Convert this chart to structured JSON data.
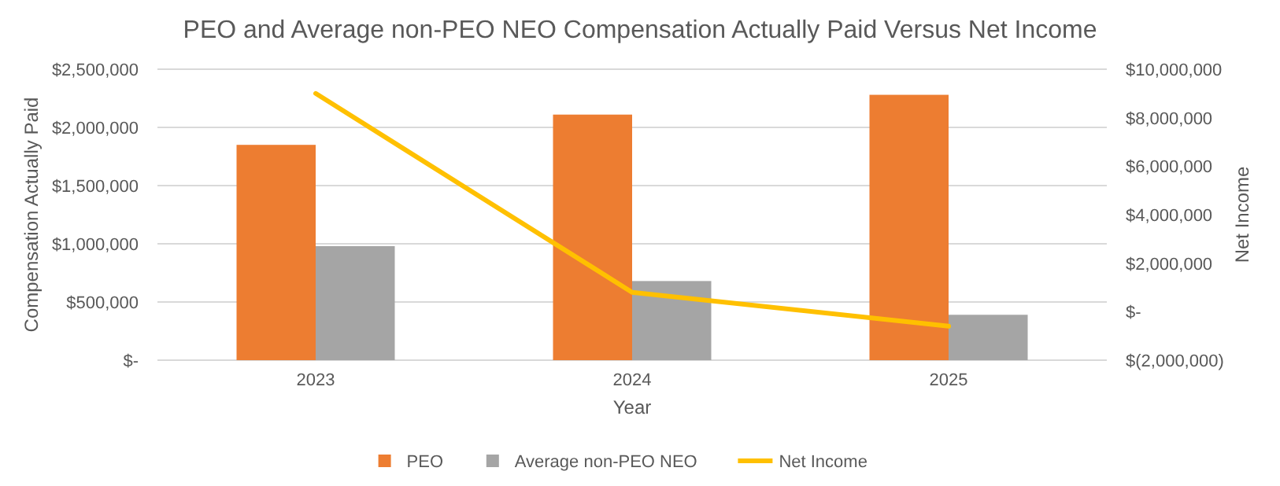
{
  "chart_data": {
    "type": "bar",
    "title": "PEO and Average non-PEO NEO Compensation Actually Paid Versus Net Income",
    "xlabel": "Year",
    "ylabel": "Compensation Actually Paid",
    "y2label": "Net Income",
    "categories": [
      "2023",
      "2024",
      "2025"
    ],
    "series": [
      {
        "name": "PEO",
        "color": "#ed7d31",
        "values": [
          1850000,
          2110000,
          2280000
        ]
      },
      {
        "name": "Average non-PEO NEO",
        "color": "#a5a5a5",
        "values": [
          980000,
          680000,
          390000
        ]
      },
      {
        "name": "Net Income",
        "type": "line",
        "axis": "y2",
        "color": "#ffc000",
        "values": [
          9000000,
          800000,
          -600000
        ]
      }
    ],
    "ylim": [
      0,
      2500000
    ],
    "yticks": [
      {
        "value": 0,
        "label": "$-"
      },
      {
        "value": 500000,
        "label": "$500,000"
      },
      {
        "value": 1000000,
        "label": "$1,000,000"
      },
      {
        "value": 1500000,
        "label": "$1,500,000"
      },
      {
        "value": 2000000,
        "label": "$2,000,000"
      },
      {
        "value": 2500000,
        "label": "$2,500,000"
      }
    ],
    "y2lim": [
      -2000000,
      10000000
    ],
    "y2ticks": [
      {
        "value": -2000000,
        "label": "$(2,000,000)"
      },
      {
        "value": 0,
        "label": "$-"
      },
      {
        "value": 2000000,
        "label": "$2,000,000"
      },
      {
        "value": 4000000,
        "label": "$4,000,000"
      },
      {
        "value": 6000000,
        "label": "$6,000,000"
      },
      {
        "value": 8000000,
        "label": "$8,000,000"
      },
      {
        "value": 10000000,
        "label": "$10,000,000"
      }
    ],
    "grid": "y",
    "legend": "bottom",
    "line_style": "solid",
    "marker": "none"
  }
}
